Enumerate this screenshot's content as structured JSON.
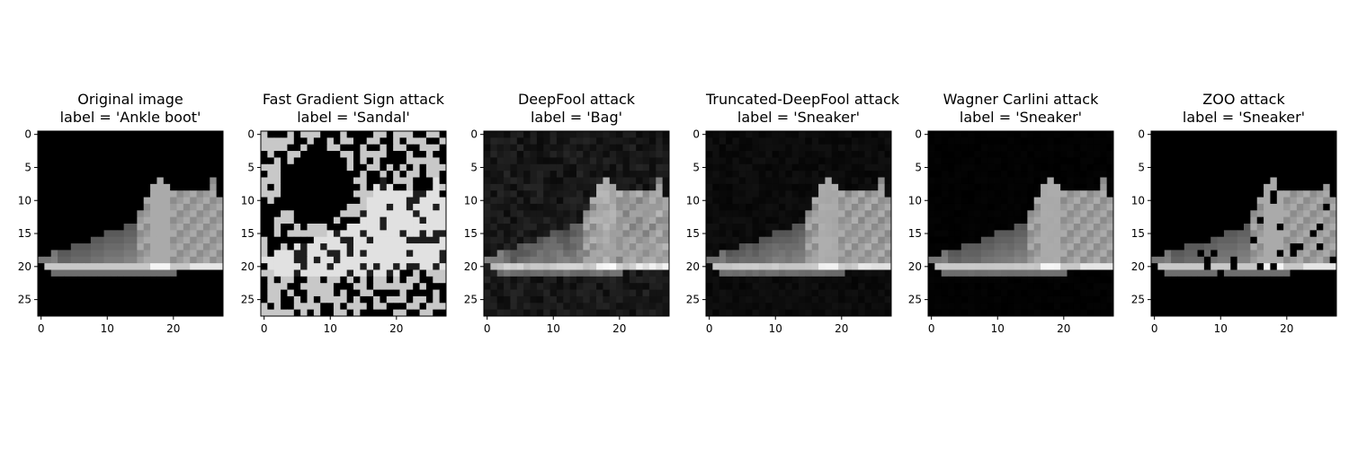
{
  "figure": {
    "background": "#ffffff",
    "colormap": "gray"
  },
  "panels": [
    {
      "title": "Original image",
      "label": "label = 'Ankle boot'",
      "attack": "none"
    },
    {
      "title": "Fast Gradient Sign attack",
      "label": "label = 'Sandal'",
      "attack": "fgsm"
    },
    {
      "title": "DeepFool attack",
      "label": "label = 'Bag'",
      "attack": "deepfool"
    },
    {
      "title": "Truncated-DeepFool attack",
      "label": "label = 'Sneaker'",
      "attack": "tdeepfool"
    },
    {
      "title": "Wagner Carlini attack",
      "label": "label = 'Sneaker'",
      "attack": "cw"
    },
    {
      "title": "ZOO attack",
      "label": "label = 'Sneaker'",
      "attack": "zoo"
    }
  ],
  "axes": {
    "x_ticks": [
      "0",
      "10",
      "20"
    ],
    "y_ticks": [
      "0",
      "5",
      "10",
      "15",
      "20",
      "25"
    ],
    "image_size": 28
  }
}
